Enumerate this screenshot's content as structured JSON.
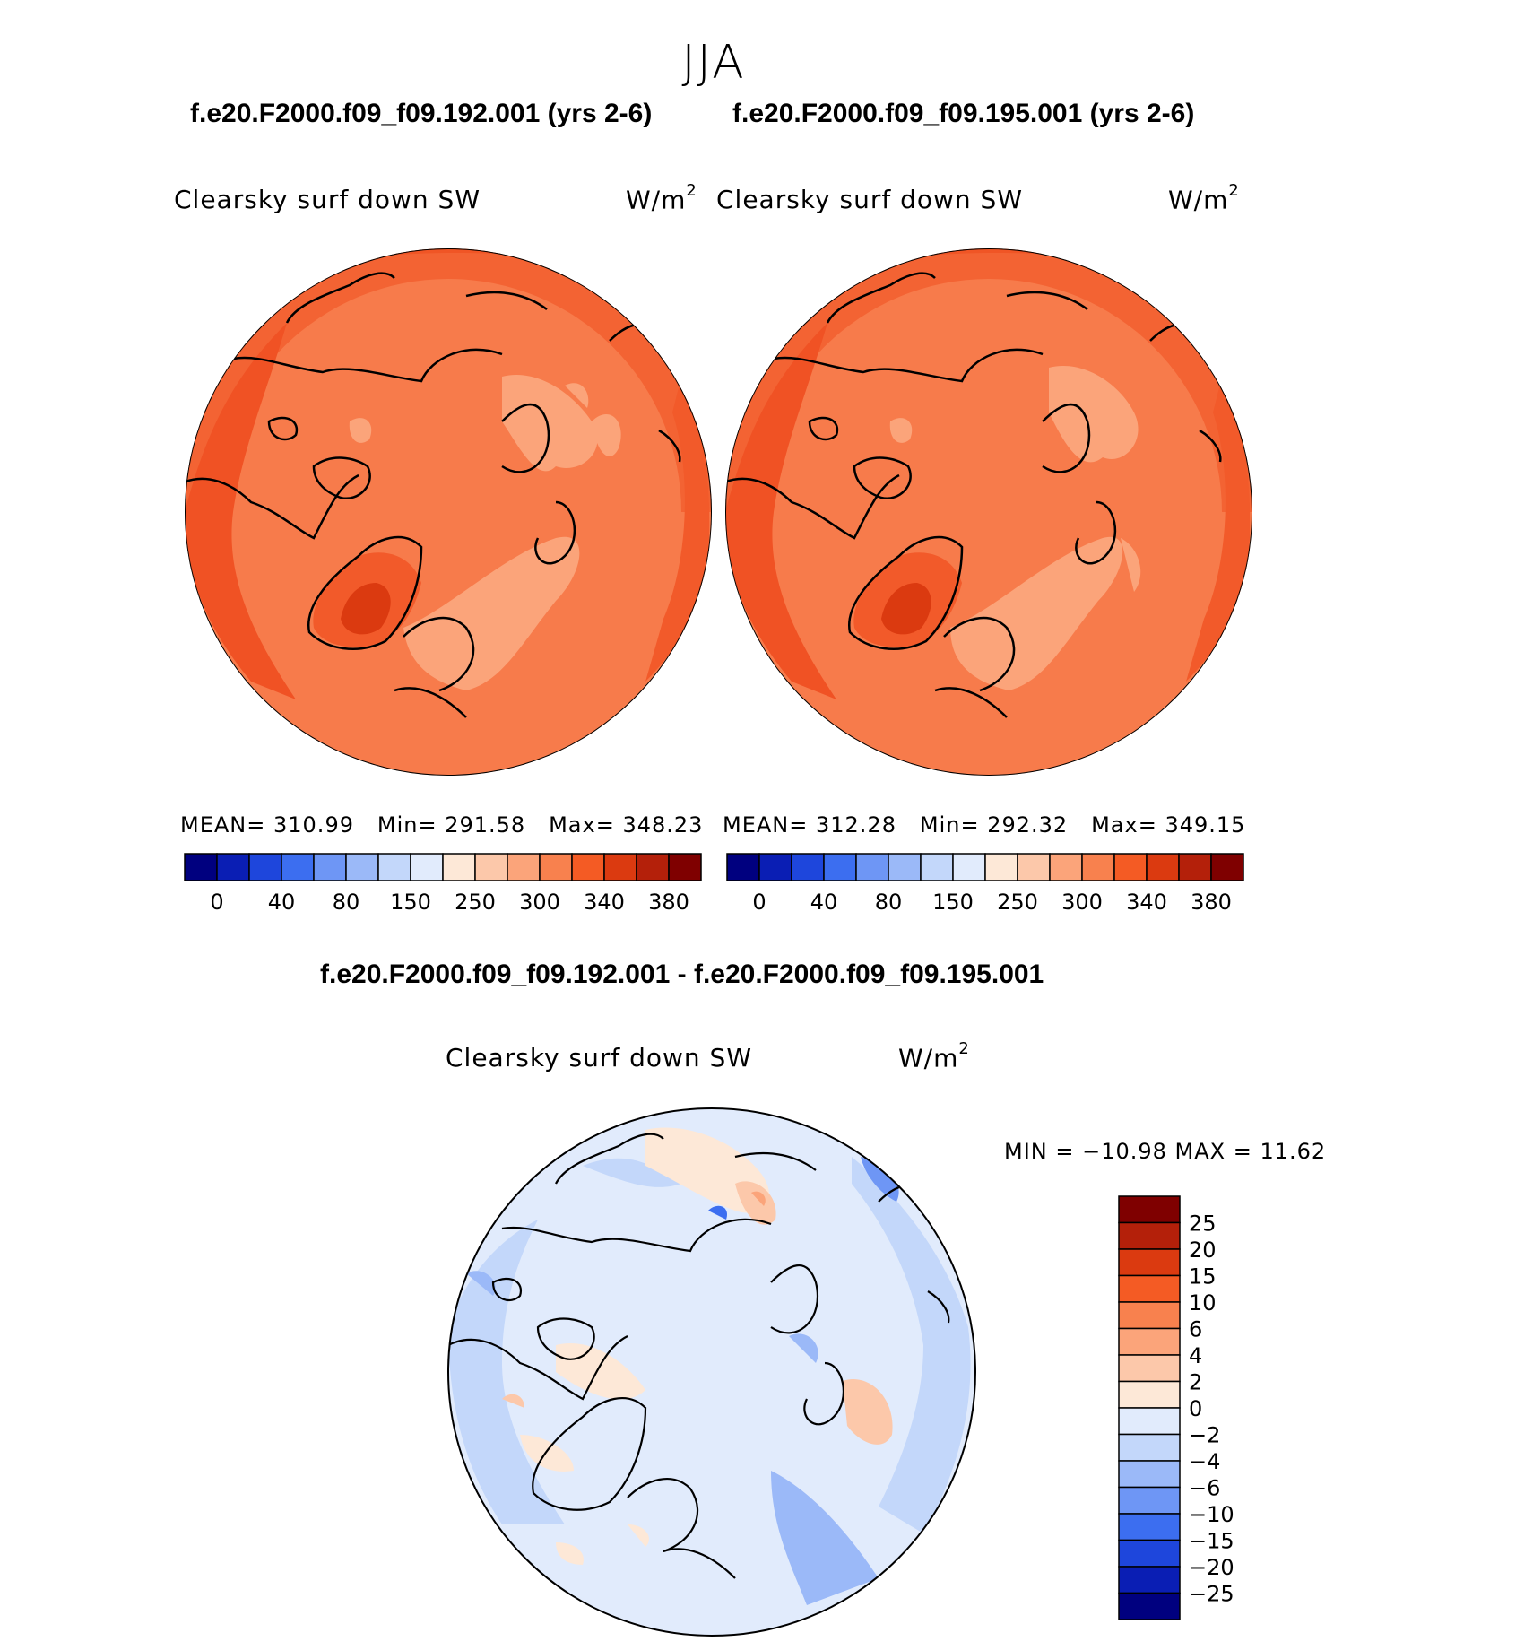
{
  "season": "JJA",
  "panels": [
    {
      "case_title": "f.e20.F2000.f09_f09.192.001 (yrs 2-6)",
      "field_label": "Clearsky surf down SW",
      "units": "W/m",
      "units_sup": "2",
      "mean_label": "MEAN=",
      "mean": "310.99",
      "min_label": "Min=",
      "min": "291.58",
      "max_label": "Max=",
      "max": "348.23"
    },
    {
      "case_title": "f.e20.F2000.f09_f09.195.001 (yrs 2-6)",
      "field_label": "Clearsky surf down SW",
      "units": "W/m",
      "units_sup": "2",
      "mean_label": "MEAN=",
      "mean": "312.28",
      "min_label": "Min=",
      "min": "292.32",
      "max_label": "Max=",
      "max": "349.15"
    }
  ],
  "diff_panel": {
    "title": "f.e20.F2000.f09_f09.192.001 - f.e20.F2000.f09_f09.195.001",
    "field_label": "Clearsky surf down SW",
    "units": "W/m",
    "units_sup": "2",
    "minmax_text": "MIN = −10.98 MAX =   11.62"
  },
  "chart_data": [
    {
      "type": "heatmap",
      "projection": "north polar stereographic",
      "title": "f.e20.F2000.f09_f09.192.001 (yrs 2-6)",
      "variable": "Clearsky surf down SW",
      "units": "W/m2",
      "stats": {
        "mean": 310.99,
        "min": 291.58,
        "max": 348.23
      },
      "colorbar": {
        "tick_labels": [
          "0",
          "40",
          "80",
          "150",
          "250",
          "300",
          "340",
          "380"
        ],
        "colors": [
          "#00007f",
          "#0a1eb4",
          "#1e46dc",
          "#3c6ef0",
          "#6e96f5",
          "#9bb9f8",
          "#c3d7fa",
          "#e1ebfc",
          "#fde8d7",
          "#fcc8aa",
          "#fba47a",
          "#f8814e",
          "#f45b24",
          "#db3a10",
          "#b4200a",
          "#7f0000"
        ]
      }
    },
    {
      "type": "heatmap",
      "projection": "north polar stereographic",
      "title": "f.e20.F2000.f09_f09.195.001 (yrs 2-6)",
      "variable": "Clearsky surf down SW",
      "units": "W/m2",
      "stats": {
        "mean": 312.28,
        "min": 292.32,
        "max": 349.15
      },
      "colorbar": {
        "tick_labels": [
          "0",
          "40",
          "80",
          "150",
          "250",
          "300",
          "340",
          "380"
        ],
        "colors": [
          "#00007f",
          "#0a1eb4",
          "#1e46dc",
          "#3c6ef0",
          "#6e96f5",
          "#9bb9f8",
          "#c3d7fa",
          "#e1ebfc",
          "#fde8d7",
          "#fcc8aa",
          "#fba47a",
          "#f8814e",
          "#f45b24",
          "#db3a10",
          "#b4200a",
          "#7f0000"
        ]
      }
    },
    {
      "type": "heatmap",
      "projection": "north polar stereographic",
      "title": "f.e20.F2000.f09_f09.192.001 - f.e20.F2000.f09_f09.195.001",
      "variable": "Clearsky surf down SW",
      "units": "W/m2",
      "stats": {
        "min": -10.98,
        "max": 11.62
      },
      "colorbar": {
        "orientation": "vertical",
        "tick_labels": [
          "25",
          "20",
          "15",
          "10",
          "6",
          "4",
          "2",
          "0",
          "−2",
          "−4",
          "−6",
          "−10",
          "−15",
          "−20",
          "−25"
        ],
        "colors": [
          "#7f0000",
          "#b4200a",
          "#db3a10",
          "#f45b24",
          "#f8814e",
          "#fba47a",
          "#fcc8aa",
          "#fde8d7",
          "#e1ebfc",
          "#c3d7fa",
          "#9bb9f8",
          "#6e96f5",
          "#3c6ef0",
          "#1e46dc",
          "#0a1eb4",
          "#00007f"
        ]
      }
    }
  ]
}
